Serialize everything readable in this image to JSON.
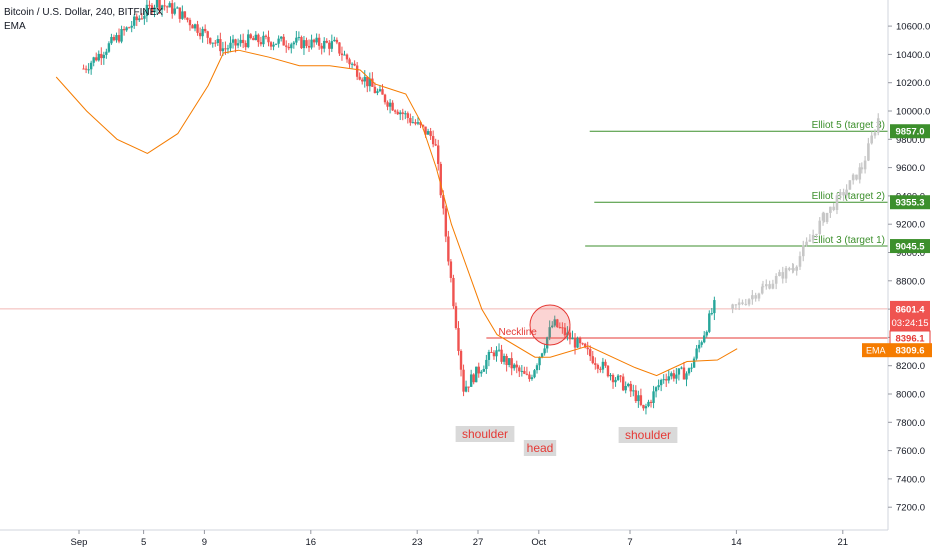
{
  "header": {
    "symbol": "Bitcoin / U.S. Dollar, 240, BITFINEX",
    "indicator": "EMA"
  },
  "colors": {
    "up": "#26a69a",
    "down": "#ef5350",
    "ema": "#f57c00",
    "projection": "#c7c7c7",
    "target_line": "#3c8f2c",
    "current_price": "#ef5350",
    "pattern": "#e53935"
  },
  "chart_data": {
    "type": "candlestick",
    "ylim": [
      6900,
      10950
    ],
    "y_ticks": [
      "7200.0",
      "7400.0",
      "7600.0",
      "7800.0",
      "8000.0",
      "8200.0",
      "8400.0",
      "8600.0",
      "8800.0",
      "9000.0",
      "9200.0",
      "9400.0",
      "9600.0",
      "9800.0",
      "10000.0",
      "10200.0",
      "10400.0",
      "10600.0"
    ],
    "x_ticks": [
      "Sep",
      "5",
      "9",
      "16",
      "23",
      "27",
      "Oct",
      "7",
      "14",
      "21"
    ],
    "horizontal_levels": [
      {
        "label": "Elliot 5 (target 3)",
        "value": 9857.0,
        "tag": "9857.0"
      },
      {
        "label": "Elliot 3 (target 2)",
        "value": 9355.3,
        "tag": "9355.3"
      },
      {
        "label": "Elliot 3 (target 1)",
        "value": 9045.5,
        "tag": "9045.5"
      },
      {
        "label": "Neckline",
        "value": 8396.1,
        "tag": "8396.1"
      }
    ],
    "current_price": {
      "value": 8601.4,
      "label": "8601.4",
      "countdown": "03:24:15"
    },
    "ema_tag": {
      "label": "EMA",
      "value": "8309.6"
    },
    "pattern_labels": [
      "shoulder",
      "head",
      "shoulder"
    ],
    "ema_path": [
      [
        -1.5,
        10240
      ],
      [
        0.5,
        10000
      ],
      [
        2.5,
        9800
      ],
      [
        4.5,
        9700
      ],
      [
        6.5,
        9840
      ],
      [
        8.5,
        10180
      ],
      [
        9.5,
        10410
      ],
      [
        10.5,
        10430
      ],
      [
        12.5,
        10380
      ],
      [
        14.5,
        10320
      ],
      [
        16.5,
        10320
      ],
      [
        18.5,
        10290
      ],
      [
        19.5,
        10190
      ],
      [
        21.5,
        10120
      ],
      [
        22.5,
        9920
      ],
      [
        23.5,
        9600
      ],
      [
        24.5,
        9200
      ],
      [
        26.5,
        8600
      ],
      [
        27.5,
        8420
      ],
      [
        30.0,
        8260
      ],
      [
        31.0,
        8260
      ],
      [
        33.5,
        8340
      ],
      [
        36.5,
        8190
      ],
      [
        38.0,
        8130
      ],
      [
        39.0,
        8180
      ],
      [
        40.0,
        8230
      ],
      [
        42.0,
        8240
      ],
      [
        43.3,
        8320
      ]
    ],
    "key_prices": [
      {
        "x": 0.3,
        "price": 10300
      },
      {
        "x": 5.1,
        "price": 10770
      },
      {
        "x": 6.5,
        "price": 10700
      },
      {
        "x": 9.5,
        "price": 10440
      },
      {
        "x": 11.2,
        "price": 10500
      },
      {
        "x": 16.8,
        "price": 10470
      },
      {
        "x": 19.5,
        "price": 10140
      },
      {
        "x": 23.4,
        "price": 9800
      },
      {
        "x": 25.3,
        "price": 8040
      },
      {
        "x": 27.3,
        "price": 8300
      },
      {
        "x": 29.6,
        "price": 8100
      },
      {
        "x": 31.2,
        "price": 8500
      },
      {
        "x": 36.7,
        "price": 7980
      },
      {
        "x": 37.1,
        "price": 7870
      },
      {
        "x": 38.5,
        "price": 8130
      },
      {
        "x": 40.1,
        "price": 8150
      },
      {
        "x": 41.8,
        "price": 8620
      }
    ],
    "projection": [
      {
        "x": 43.0,
        "price": 8600
      },
      {
        "x": 45.0,
        "price": 8750
      },
      {
        "x": 47.0,
        "price": 8900
      },
      {
        "x": 49.0,
        "price": 9250
      },
      {
        "x": 50.5,
        "price": 9450
      },
      {
        "x": 51.5,
        "price": 9600
      },
      {
        "x": 52.6,
        "price": 9950
      }
    ]
  }
}
